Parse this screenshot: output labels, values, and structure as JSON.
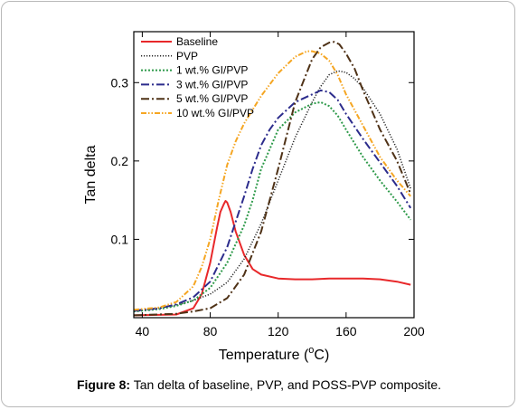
{
  "caption": {
    "label": "Figure 8:",
    "text": " Tan delta of baseline, PVP, and POSS-PVP composite."
  },
  "chart_data": {
    "type": "line",
    "xlabel_prefix": "Temperature (",
    "xlabel_degree": "o",
    "xlabel_suffix": "C)",
    "ylabel": "Tan delta",
    "xlim": [
      35,
      200
    ],
    "ylim": [
      0,
      0.365
    ],
    "xticks": [
      40,
      80,
      120,
      160,
      200
    ],
    "yticks": [
      0.1,
      0.2,
      0.3
    ],
    "grid": false,
    "legend_position": "top-left",
    "series": [
      {
        "name": "Baseline",
        "color": "#e8282a",
        "dash": "",
        "width": 2,
        "x": [
          35,
          60,
          70,
          75,
          80,
          84,
          86,
          88,
          89,
          90,
          92,
          95,
          100,
          105,
          110,
          120,
          130,
          140,
          150,
          160,
          170,
          180,
          190,
          198
        ],
        "y": [
          0.003,
          0.004,
          0.012,
          0.03,
          0.07,
          0.115,
          0.135,
          0.145,
          0.149,
          0.147,
          0.135,
          0.11,
          0.08,
          0.062,
          0.055,
          0.05,
          0.049,
          0.049,
          0.05,
          0.05,
          0.05,
          0.049,
          0.046,
          0.042
        ]
      },
      {
        "name": "PVP",
        "color": "#222222",
        "dash": "1.2,1.8",
        "width": 1.5,
        "x": [
          35,
          50,
          60,
          70,
          80,
          90,
          100,
          110,
          120,
          130,
          140,
          145,
          150,
          155,
          160,
          165,
          170,
          180,
          190,
          198
        ],
        "y": [
          0.008,
          0.012,
          0.016,
          0.022,
          0.03,
          0.045,
          0.075,
          0.12,
          0.175,
          0.23,
          0.275,
          0.295,
          0.31,
          0.315,
          0.313,
          0.305,
          0.293,
          0.26,
          0.215,
          0.165
        ]
      },
      {
        "name": "1 wt.% GI/PVP",
        "color": "#2e9a4a",
        "dash": "2,2",
        "width": 2,
        "x": [
          35,
          50,
          60,
          70,
          80,
          90,
          100,
          105,
          110,
          115,
          120,
          130,
          140,
          145,
          150,
          155,
          160,
          170,
          180,
          190,
          198
        ],
        "y": [
          0.008,
          0.011,
          0.015,
          0.022,
          0.038,
          0.07,
          0.118,
          0.15,
          0.19,
          0.215,
          0.24,
          0.262,
          0.273,
          0.275,
          0.27,
          0.258,
          0.24,
          0.205,
          0.175,
          0.148,
          0.125
        ]
      },
      {
        "name": "3 wt.% GI/PVP",
        "color": "#2c2c8c",
        "dash": "9,3,2,3",
        "width": 2,
        "x": [
          35,
          50,
          60,
          70,
          80,
          90,
          100,
          105,
          110,
          115,
          120,
          130,
          140,
          145,
          150,
          155,
          160,
          170,
          180,
          190,
          198
        ],
        "y": [
          0.009,
          0.012,
          0.017,
          0.026,
          0.046,
          0.09,
          0.155,
          0.19,
          0.22,
          0.24,
          0.255,
          0.275,
          0.285,
          0.29,
          0.288,
          0.278,
          0.26,
          0.228,
          0.198,
          0.168,
          0.14
        ]
      },
      {
        "name": "5 wt.% GI/PVP",
        "color": "#4f3217",
        "dash": "9,3,2,3",
        "width": 2,
        "x": [
          35,
          60,
          70,
          80,
          90,
          100,
          110,
          120,
          130,
          140,
          145,
          150,
          153,
          156,
          160,
          165,
          170,
          180,
          190,
          198
        ],
        "y": [
          0.003,
          0.005,
          0.008,
          0.012,
          0.025,
          0.055,
          0.11,
          0.19,
          0.275,
          0.33,
          0.345,
          0.351,
          0.352,
          0.349,
          0.337,
          0.318,
          0.29,
          0.24,
          0.2,
          0.158
        ]
      },
      {
        "name": "10 wt.% GI/PVP",
        "color": "#f5a623",
        "dash": "6,2,1.5,2,1.5,2",
        "width": 2,
        "x": [
          35,
          50,
          60,
          70,
          75,
          80,
          85,
          90,
          95,
          100,
          110,
          120,
          130,
          137,
          140,
          145,
          150,
          155,
          160,
          170,
          180,
          190,
          198
        ],
        "y": [
          0.01,
          0.013,
          0.02,
          0.04,
          0.065,
          0.1,
          0.15,
          0.195,
          0.225,
          0.248,
          0.283,
          0.312,
          0.333,
          0.34,
          0.34,
          0.337,
          0.328,
          0.31,
          0.285,
          0.245,
          0.205,
          0.175,
          0.155
        ]
      }
    ]
  }
}
